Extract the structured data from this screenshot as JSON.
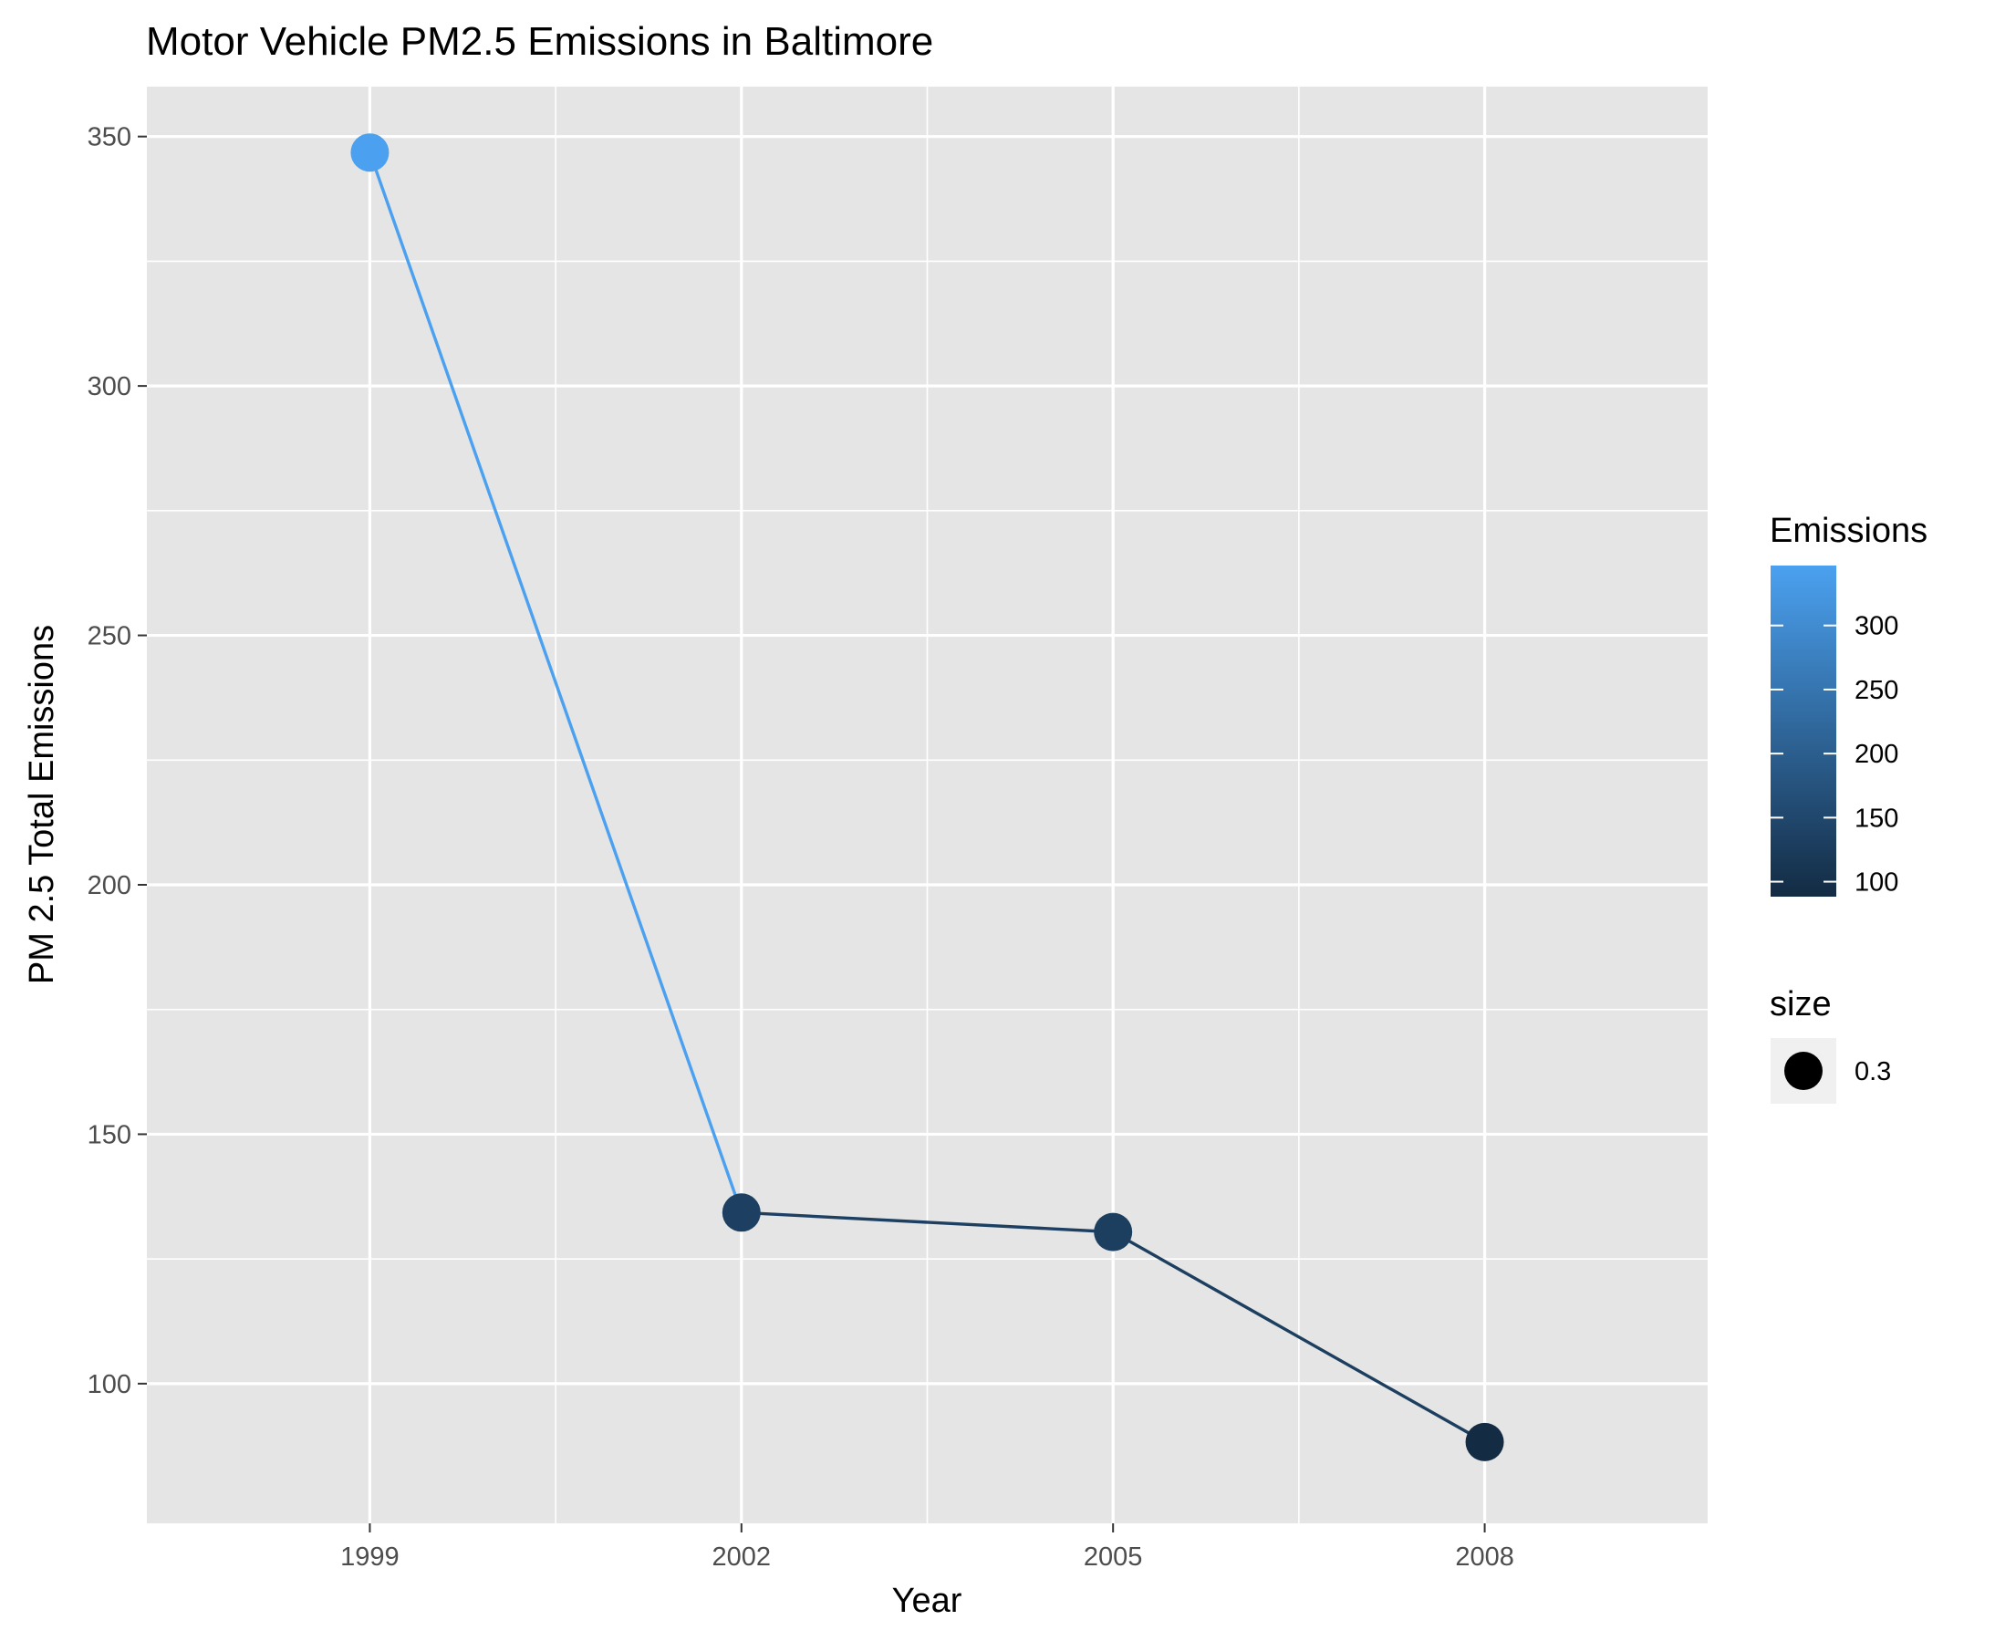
{
  "chart_data": {
    "type": "line",
    "title": "Motor Vehicle PM2.5 Emissions in Baltimore",
    "xlabel": "Year",
    "ylabel": "PM 2.5 Total Emissions",
    "x": [
      1999,
      2002,
      2005,
      2008
    ],
    "y": [
      346.8,
      134.3,
      130.4,
      88.3
    ],
    "x_ticks": [
      "1999",
      "2002",
      "2005",
      "2008"
    ],
    "y_ticks": [
      100,
      150,
      200,
      250,
      300,
      350
    ],
    "ylim": [
      72,
      360
    ],
    "grid": true,
    "legend_placement": "right",
    "color_legend": {
      "title": "Emissions",
      "range": [
        88.3,
        346.8
      ],
      "ticks": [
        100,
        150,
        200,
        250,
        300
      ],
      "low_color": "#132b43",
      "high_color": "#4ba1f0"
    },
    "size_legend": {
      "title": "size",
      "entries": [
        "0.3"
      ]
    }
  },
  "colors": {
    "panel_background": "#e5e5e5",
    "grid_line": "#ffffff",
    "legend_key_background": "#f0f0f0"
  }
}
